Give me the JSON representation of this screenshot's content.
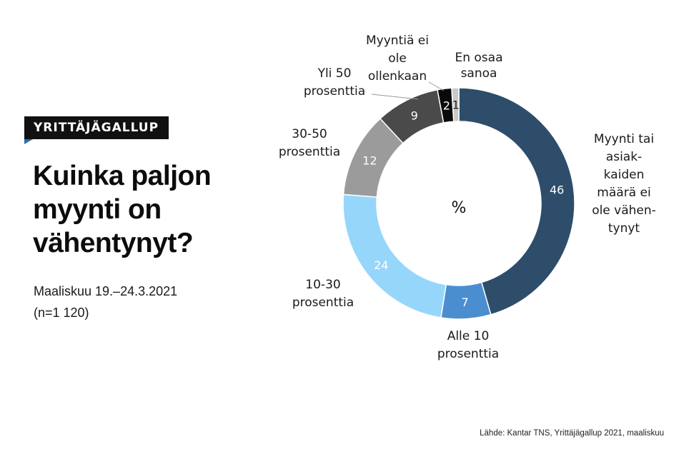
{
  "badge": "YRITTÄJÄGALLUP",
  "title": "Kuinka paljon myynti on vähentynyt?",
  "meta": {
    "date": "Maaliskuu 19.–24.3.2021",
    "sample": "(n=1 120)"
  },
  "source": "Lähde: Kantar TNS, Yrittäjägallup 2021, maaliskuu",
  "chart_data": {
    "type": "pie",
    "center_label": "%",
    "slices": [
      {
        "label": "Myynti tai asiakkaiden määrä ei ole vähentynyt",
        "label_lines": [
          "Myynti tai",
          "asiak-",
          "kaiden",
          "määrä ei",
          "ole vähen-",
          "tynyt"
        ],
        "value": 46,
        "color": "#2d4d6b",
        "text_color": "#ffffff"
      },
      {
        "label": "Alle 10 prosenttia",
        "label_lines": [
          "Alle 10",
          "prosenttia"
        ],
        "value": 7,
        "color": "#4a8ed0",
        "text_color": "#ffffff"
      },
      {
        "label": "10-30 prosenttia",
        "label_lines": [
          "10-30",
          "prosenttia"
        ],
        "value": 24,
        "color": "#97d6fb",
        "text_color": "#ffffff"
      },
      {
        "label": "30-50 prosenttia",
        "label_lines": [
          "30-50",
          "prosenttia"
        ],
        "value": 12,
        "color": "#9b9b9b",
        "text_color": "#ffffff"
      },
      {
        "label": "Yli 50 prosenttia",
        "label_lines": [
          "Yli 50",
          "prosenttia"
        ],
        "value": 9,
        "color": "#4a4a4a",
        "text_color": "#ffffff"
      },
      {
        "label": "Myyntiä ei ole ollenkaan",
        "label_lines": [
          "Myyntiä ei",
          "ole",
          "ollenkaan"
        ],
        "value": 2,
        "color": "#0a0a0a",
        "text_color": "#ffffff"
      },
      {
        "label": "En osaa sanoa",
        "label_lines": [
          "En osaa",
          "sanoa"
        ],
        "value": 1,
        "color": "#c9c9c9",
        "text_color": "#222222"
      }
    ]
  }
}
